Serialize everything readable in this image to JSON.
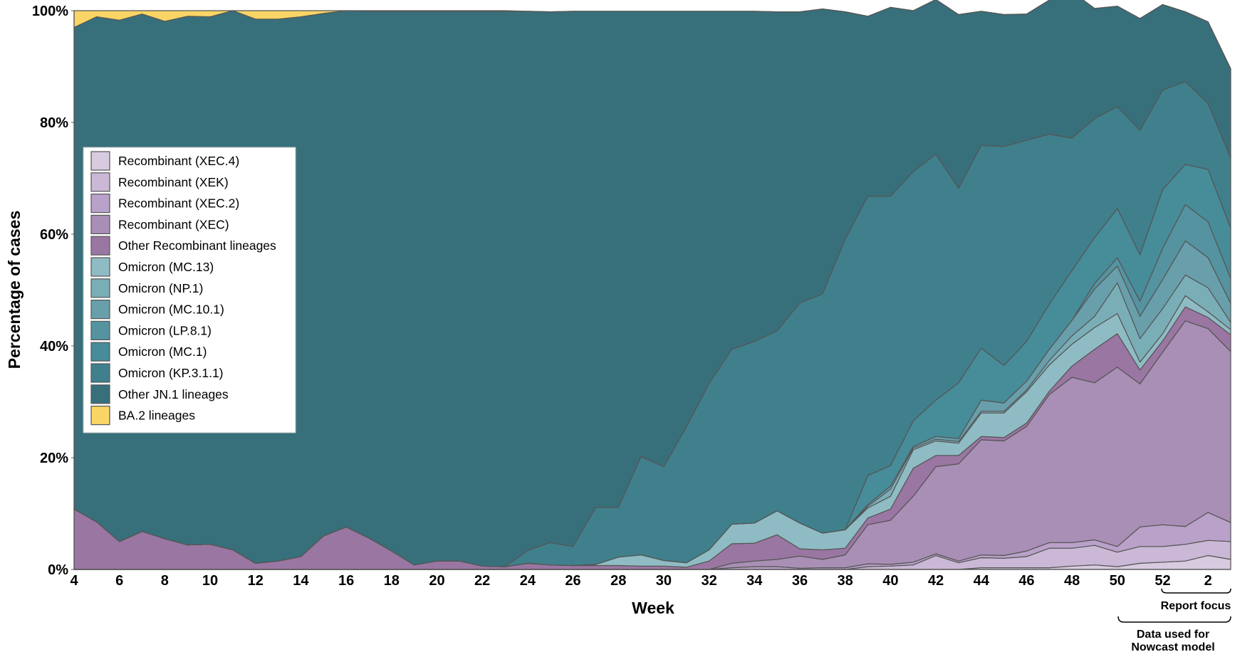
{
  "chart_data": {
    "type": "area",
    "stacked": true,
    "normalized": true,
    "title": "",
    "xlabel": "Week",
    "ylabel": "Percentage of cases",
    "ylim": [
      0,
      100
    ],
    "y_ticks": [
      "0%",
      "20%",
      "40%",
      "60%",
      "80%",
      "100%"
    ],
    "x": [
      "4",
      "5",
      "6",
      "7",
      "8",
      "9",
      "10",
      "11",
      "12",
      "13",
      "14",
      "15",
      "16",
      "17",
      "18",
      "19",
      "20",
      "21",
      "22",
      "23",
      "24",
      "25",
      "26",
      "27",
      "28",
      "29",
      "30",
      "31",
      "32",
      "33",
      "34",
      "35",
      "36",
      "37",
      "38",
      "39",
      "40",
      "41",
      "42",
      "43",
      "44",
      "45",
      "46",
      "47",
      "48",
      "49",
      "50",
      "51",
      "52",
      "1",
      "2",
      "3"
    ],
    "x_tick_labels": [
      "4",
      "6",
      "8",
      "10",
      "12",
      "14",
      "16",
      "18",
      "20",
      "22",
      "24",
      "26",
      "28",
      "30",
      "32",
      "34",
      "36",
      "38",
      "40",
      "42",
      "44",
      "46",
      "48",
      "50",
      "52",
      "2"
    ],
    "legend_position": "upper-left",
    "grid": false,
    "annotations": {
      "report_focus": "Report focus",
      "nowcast_line1": "Data used for",
      "nowcast_line2": "Nowcast model"
    },
    "series": [
      {
        "name": "Recombinant (XEC.4)",
        "color": "#d8cbe0",
        "values": [
          0,
          0,
          0,
          0,
          0,
          0,
          0,
          0,
          0,
          0,
          0,
          0,
          0,
          0,
          0,
          0,
          0,
          0,
          0,
          0,
          0,
          0,
          0,
          0,
          0,
          0,
          0,
          0,
          0,
          0,
          0,
          0,
          0,
          0,
          0,
          0,
          0,
          0,
          0,
          0,
          0.3,
          0.3,
          0.3,
          0.3,
          0.6,
          0.8,
          0.5,
          1.1,
          1.3,
          1.5,
          2.5,
          1.8
        ]
      },
      {
        "name": "Recombinant (XEK)",
        "color": "#cab8d6",
        "values": [
          0,
          0,
          0,
          0,
          0,
          0,
          0,
          0,
          0,
          0,
          0,
          0,
          0,
          0,
          0,
          0,
          0,
          0,
          0,
          0,
          0,
          0,
          0,
          0,
          0,
          0,
          0,
          0,
          0,
          0,
          0,
          0,
          0,
          0,
          0,
          0.5,
          0.6,
          0.8,
          2.5,
          1.2,
          1.8,
          1.7,
          2.0,
          3.5,
          3.2,
          3.5,
          2.6,
          3.0,
          2.8,
          3.0,
          2.7,
          3.2
        ]
      },
      {
        "name": "Recombinant (XEC.2)",
        "color": "#b9a1c9",
        "values": [
          0,
          0,
          0,
          0,
          0,
          0,
          0,
          0,
          0,
          0,
          0,
          0,
          0,
          0,
          0,
          0,
          0,
          0,
          0,
          0,
          0,
          0,
          0,
          0,
          0,
          0,
          0,
          0,
          0,
          0.3,
          0.5,
          0.5,
          0.2,
          0.3,
          0.3,
          0.5,
          0.3,
          0.5,
          0.3,
          0.3,
          0.5,
          0.5,
          1,
          1,
          1,
          1,
          1,
          3.5,
          3.9,
          3.2,
          5.0,
          3.4
        ]
      },
      {
        "name": "Recombinant (XEC)",
        "color": "#a98fb6",
        "values": [
          0,
          0,
          0,
          0,
          0,
          0,
          0,
          0,
          0,
          0,
          0,
          0,
          0,
          0,
          0,
          0,
          0,
          0,
          0,
          0,
          0,
          0,
          0,
          0,
          0,
          0,
          0,
          0,
          0,
          0.8,
          1,
          1.3,
          2.2,
          1.5,
          2.3,
          7.0,
          7.9,
          11.8,
          15.6,
          17.4,
          20.6,
          20.5,
          22.3,
          26.5,
          29.6,
          28.1,
          32.1,
          25.6,
          30.9,
          36.8,
          32.9,
          30.6
        ]
      },
      {
        "name": "Other Recombinant lineages",
        "color": "#9a76a2",
        "values": [
          10.8,
          8.5,
          5.0,
          6.8,
          5.5,
          4.4,
          4.5,
          3.5,
          1.1,
          1.5,
          2.3,
          6.0,
          7.6,
          5.6,
          3.3,
          0.8,
          1.5,
          1.5,
          0.6,
          0.5,
          1.1,
          0.8,
          0.7,
          0.7,
          0.7,
          0.6,
          0.6,
          0.4,
          1.5,
          3.5,
          3.2,
          4.4,
          1.3,
          1.7,
          1.2,
          1.2,
          2.0,
          5.0,
          2.0,
          1.5,
          0.6,
          0.6,
          0.6,
          0.6,
          2.0,
          6.0,
          6.0,
          2.5,
          2.0,
          2.5,
          2.0,
          3.0
        ]
      },
      {
        "name": "Omicron (MC.13)",
        "color": "#8fbcc4",
        "values": [
          0,
          0,
          0,
          0,
          0,
          0,
          0,
          0,
          0,
          0,
          0,
          0,
          0,
          0,
          0,
          0,
          0,
          0,
          0,
          0,
          0,
          0,
          0,
          0.2,
          1.5,
          2.0,
          1.0,
          0.8,
          2.0,
          3.5,
          3.6,
          4.3,
          4.6,
          3.0,
          3.3,
          1.8,
          2.3,
          3.3,
          2.6,
          2.2,
          4.2,
          4.4,
          5.6,
          4.7,
          3.9,
          3.9,
          3.6,
          1.4,
          1.3,
          2.0,
          1.0,
          0.9
        ]
      },
      {
        "name": "Omicron (NP.1)",
        "color": "#7aaeb7",
        "values": [
          0,
          0,
          0,
          0,
          0,
          0,
          0,
          0,
          0,
          0,
          0,
          0,
          0,
          0,
          0,
          0,
          0,
          0,
          0,
          0,
          0,
          0,
          0,
          0,
          0,
          0,
          0,
          0,
          0,
          0,
          0,
          0,
          0,
          0,
          0,
          0.3,
          1.3,
          0.3,
          0.3,
          0.3,
          0.3,
          0.3,
          0.3,
          0.8,
          1.5,
          2.0,
          5.5,
          4.2,
          4.5,
          3.7,
          4.3,
          1.3
        ]
      },
      {
        "name": "Omicron (MC.10.1)",
        "color": "#689fab",
        "values": [
          0,
          0,
          0,
          0,
          0,
          0,
          0,
          0,
          0,
          0,
          0,
          0,
          0,
          0,
          0,
          0,
          0,
          0,
          0,
          0,
          0,
          0,
          0,
          0,
          0,
          0,
          0,
          0,
          0,
          0,
          0,
          0,
          0,
          0,
          0,
          0.3,
          0.5,
          0.3,
          0.5,
          0.5,
          2.0,
          1.5,
          1.6,
          2.0,
          2.8,
          4.9,
          3.0,
          4.0,
          5.2,
          6.1,
          5.4,
          3.4
        ]
      },
      {
        "name": "Omicron (LP.8.1)",
        "color": "#5593a0",
        "values": [
          0,
          0,
          0,
          0,
          0,
          0,
          0,
          0,
          0,
          0,
          0,
          0,
          0,
          0,
          0,
          0,
          0,
          0,
          0,
          0,
          0,
          0,
          0,
          0,
          0,
          0,
          0,
          0,
          0,
          0,
          0,
          0,
          0,
          0,
          0,
          0,
          0,
          0,
          0,
          0,
          0,
          0,
          0,
          0,
          0,
          1.0,
          1.5,
          2.7,
          5.6,
          6.5,
          6.4,
          4.5
        ]
      },
      {
        "name": "Omicron (MC.1)",
        "color": "#478c99",
        "values": [
          0,
          0,
          0,
          0,
          0,
          0,
          0,
          0,
          0,
          0,
          0,
          0,
          0,
          0,
          0,
          0,
          0,
          0,
          0,
          0,
          0,
          0,
          0,
          0,
          0,
          0,
          0,
          0,
          0,
          0,
          0,
          0,
          0,
          0,
          0,
          5.2,
          3.7,
          4.6,
          6.5,
          10.0,
          9.3,
          6.7,
          7.1,
          8.1,
          8.9,
          8.2,
          8.8,
          8.3,
          10.5,
          7.2,
          9.4,
          9.0
        ]
      },
      {
        "name": "Omicron (KP.3.1.1)",
        "color": "#3f808c",
        "values": [
          0,
          0,
          0,
          0,
          0,
          0,
          0,
          0,
          0,
          0,
          0,
          0,
          0,
          0,
          0,
          0,
          0,
          0,
          0,
          0,
          2.3,
          4.0,
          3.4,
          10.2,
          8.9,
          17.6,
          16.8,
          24.3,
          29.8,
          31.3,
          32.5,
          32.2,
          39.4,
          42.8,
          52.0,
          50.0,
          48.2,
          44.6,
          44.0,
          34.8,
          36.3,
          39.2,
          36.0,
          30.4,
          23.7,
          21.3,
          18.2,
          22.3,
          17.8,
          14.8,
          11.8,
          12.5
        ]
      },
      {
        "name": "Other JN.1 lineages",
        "color": "#37707b",
        "values": [
          86.2,
          90.4,
          93.3,
          92.6,
          92.6,
          94.6,
          94.4,
          96.5,
          97.4,
          97.0,
          96.6,
          93.5,
          92.4,
          94.3,
          96.6,
          99.1,
          98.4,
          98.4,
          99.3,
          99.4,
          96.5,
          95.0,
          95.8,
          88.8,
          88.8,
          79.7,
          81.5,
          74.4,
          66.6,
          60.5,
          59.1,
          57.1,
          52.1,
          51.0,
          40.7,
          32.2,
          33.8,
          28.8,
          27.7,
          31.1,
          24.0,
          23.6,
          22.6,
          24.0,
          26.2,
          19.7,
          18.0,
          20.0,
          15.3,
          12.5,
          14.6,
          16.0
        ]
      },
      {
        "name": "BA.2 lineages",
        "color": "#f9d566",
        "values": [
          3.0,
          1.1,
          1.7,
          0.6,
          1.9,
          1.0,
          1.1,
          0,
          1.5,
          1.5,
          1.1,
          0.5,
          0,
          0.1,
          0.1,
          0.1,
          0.1,
          0.1,
          0.1,
          0.1,
          0,
          0,
          0,
          0,
          0,
          0,
          0,
          0,
          0,
          0,
          0,
          0,
          0,
          0,
          0,
          0,
          0,
          0,
          0,
          0,
          0,
          0,
          0,
          0,
          0,
          0,
          0,
          0,
          0,
          0,
          0,
          0
        ]
      }
    ]
  }
}
